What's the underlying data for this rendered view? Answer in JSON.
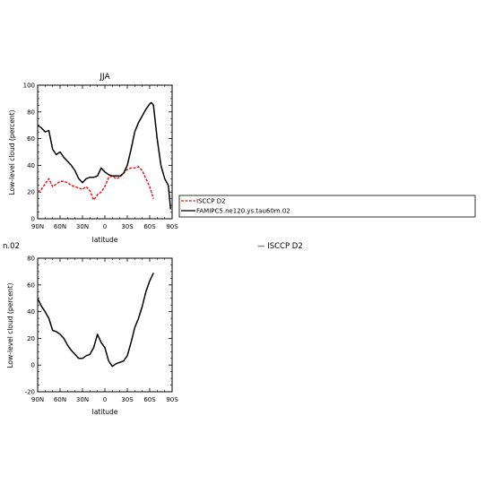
{
  "panels": {
    "top": {
      "title": "JJA",
      "ylabel": "Low-level cloud (percent)",
      "xlabel": "latitude",
      "yticks": [
        0,
        20,
        40,
        60,
        80,
        100
      ],
      "ylim": [
        0,
        100
      ],
      "xticks": [
        "90N",
        "60N",
        "30N",
        "0",
        "30S",
        "60S",
        "90S"
      ],
      "legend": [
        "ISCCP D2",
        "FAMIPC5.ne120.ys.tau60m.02"
      ]
    },
    "bottom": {
      "ylabel": "Low-level cloud (percent)",
      "xlabel": "latitude",
      "yticks": [
        -20,
        0,
        20,
        40,
        60,
        80
      ],
      "ylim": [
        -20,
        80
      ],
      "xticks": [
        "90N",
        "60N",
        "30N",
        "0",
        "30S",
        "60S",
        "90S"
      ]
    }
  },
  "fragments": {
    "left": "n.02",
    "right": "— ISCCP D2"
  },
  "colors": {
    "isccp": "#e8161b",
    "model": "#000000"
  },
  "chart_data": [
    {
      "type": "line",
      "title": "JJA",
      "xlabel": "latitude",
      "ylabel": "Low-level cloud (percent)",
      "x_unit": "latitude (N positive, S negative)",
      "xlim": [
        90,
        -90
      ],
      "ylim": [
        0,
        100
      ],
      "grid": false,
      "legend_position": "right, outside",
      "series": [
        {
          "name": "ISCCP D2",
          "color": "#e8161b",
          "style": "dashed",
          "x": [
            90,
            85,
            80,
            75,
            70,
            65,
            60,
            55,
            50,
            45,
            40,
            35,
            30,
            25,
            20,
            15,
            10,
            5,
            0,
            -5,
            -10,
            -15,
            -20,
            -25,
            -30,
            -35,
            -40,
            -45,
            -50,
            -55,
            -60,
            -65
          ],
          "y": [
            20,
            22,
            26,
            30,
            24,
            26,
            28,
            28,
            27,
            25,
            24,
            23,
            22,
            24,
            21,
            14,
            18,
            20,
            24,
            31,
            32,
            30,
            31,
            34,
            37,
            38,
            38,
            39,
            36,
            30,
            24,
            15
          ]
        },
        {
          "name": "FAMIPC5.ne120.ys.tau60m.02",
          "color": "#000000",
          "style": "solid",
          "x": [
            90,
            85,
            80,
            75,
            70,
            65,
            60,
            55,
            50,
            45,
            40,
            35,
            30,
            25,
            20,
            15,
            10,
            5,
            0,
            -5,
            -10,
            -15,
            -20,
            -25,
            -30,
            -35,
            -40,
            -45,
            -50,
            -55,
            -60,
            -62,
            -65,
            -70,
            -75,
            -80,
            -85,
            -88
          ],
          "y": [
            70,
            68,
            65,
            66,
            52,
            48,
            50,
            46,
            43,
            40,
            36,
            30,
            27,
            30,
            31,
            31,
            32,
            38,
            35,
            33,
            32,
            32,
            32,
            34,
            40,
            52,
            65,
            72,
            77,
            82,
            86,
            87,
            85,
            60,
            40,
            30,
            25,
            7
          ]
        }
      ]
    },
    {
      "type": "line",
      "xlabel": "latitude",
      "ylabel": "Low-level cloud (percent)",
      "x_unit": "latitude (N positive, S negative)",
      "xlim": [
        90,
        -90
      ],
      "ylim": [
        -20,
        80
      ],
      "grid": false,
      "series": [
        {
          "color": "#000000",
          "style": "solid",
          "x": [
            90,
            85,
            80,
            75,
            70,
            65,
            60,
            55,
            50,
            45,
            40,
            35,
            30,
            25,
            20,
            15,
            10,
            5,
            0,
            -5,
            -10,
            -15,
            -20,
            -25,
            -30,
            -35,
            -40,
            -45,
            -50,
            -55,
            -60,
            -65
          ],
          "y": [
            50,
            44,
            40,
            35,
            26,
            25,
            23,
            20,
            15,
            11,
            8,
            5,
            5,
            7,
            8,
            13,
            23,
            17,
            13,
            3,
            -1,
            1,
            2,
            3,
            7,
            17,
            28,
            35,
            44,
            55,
            63,
            69
          ]
        }
      ]
    }
  ]
}
